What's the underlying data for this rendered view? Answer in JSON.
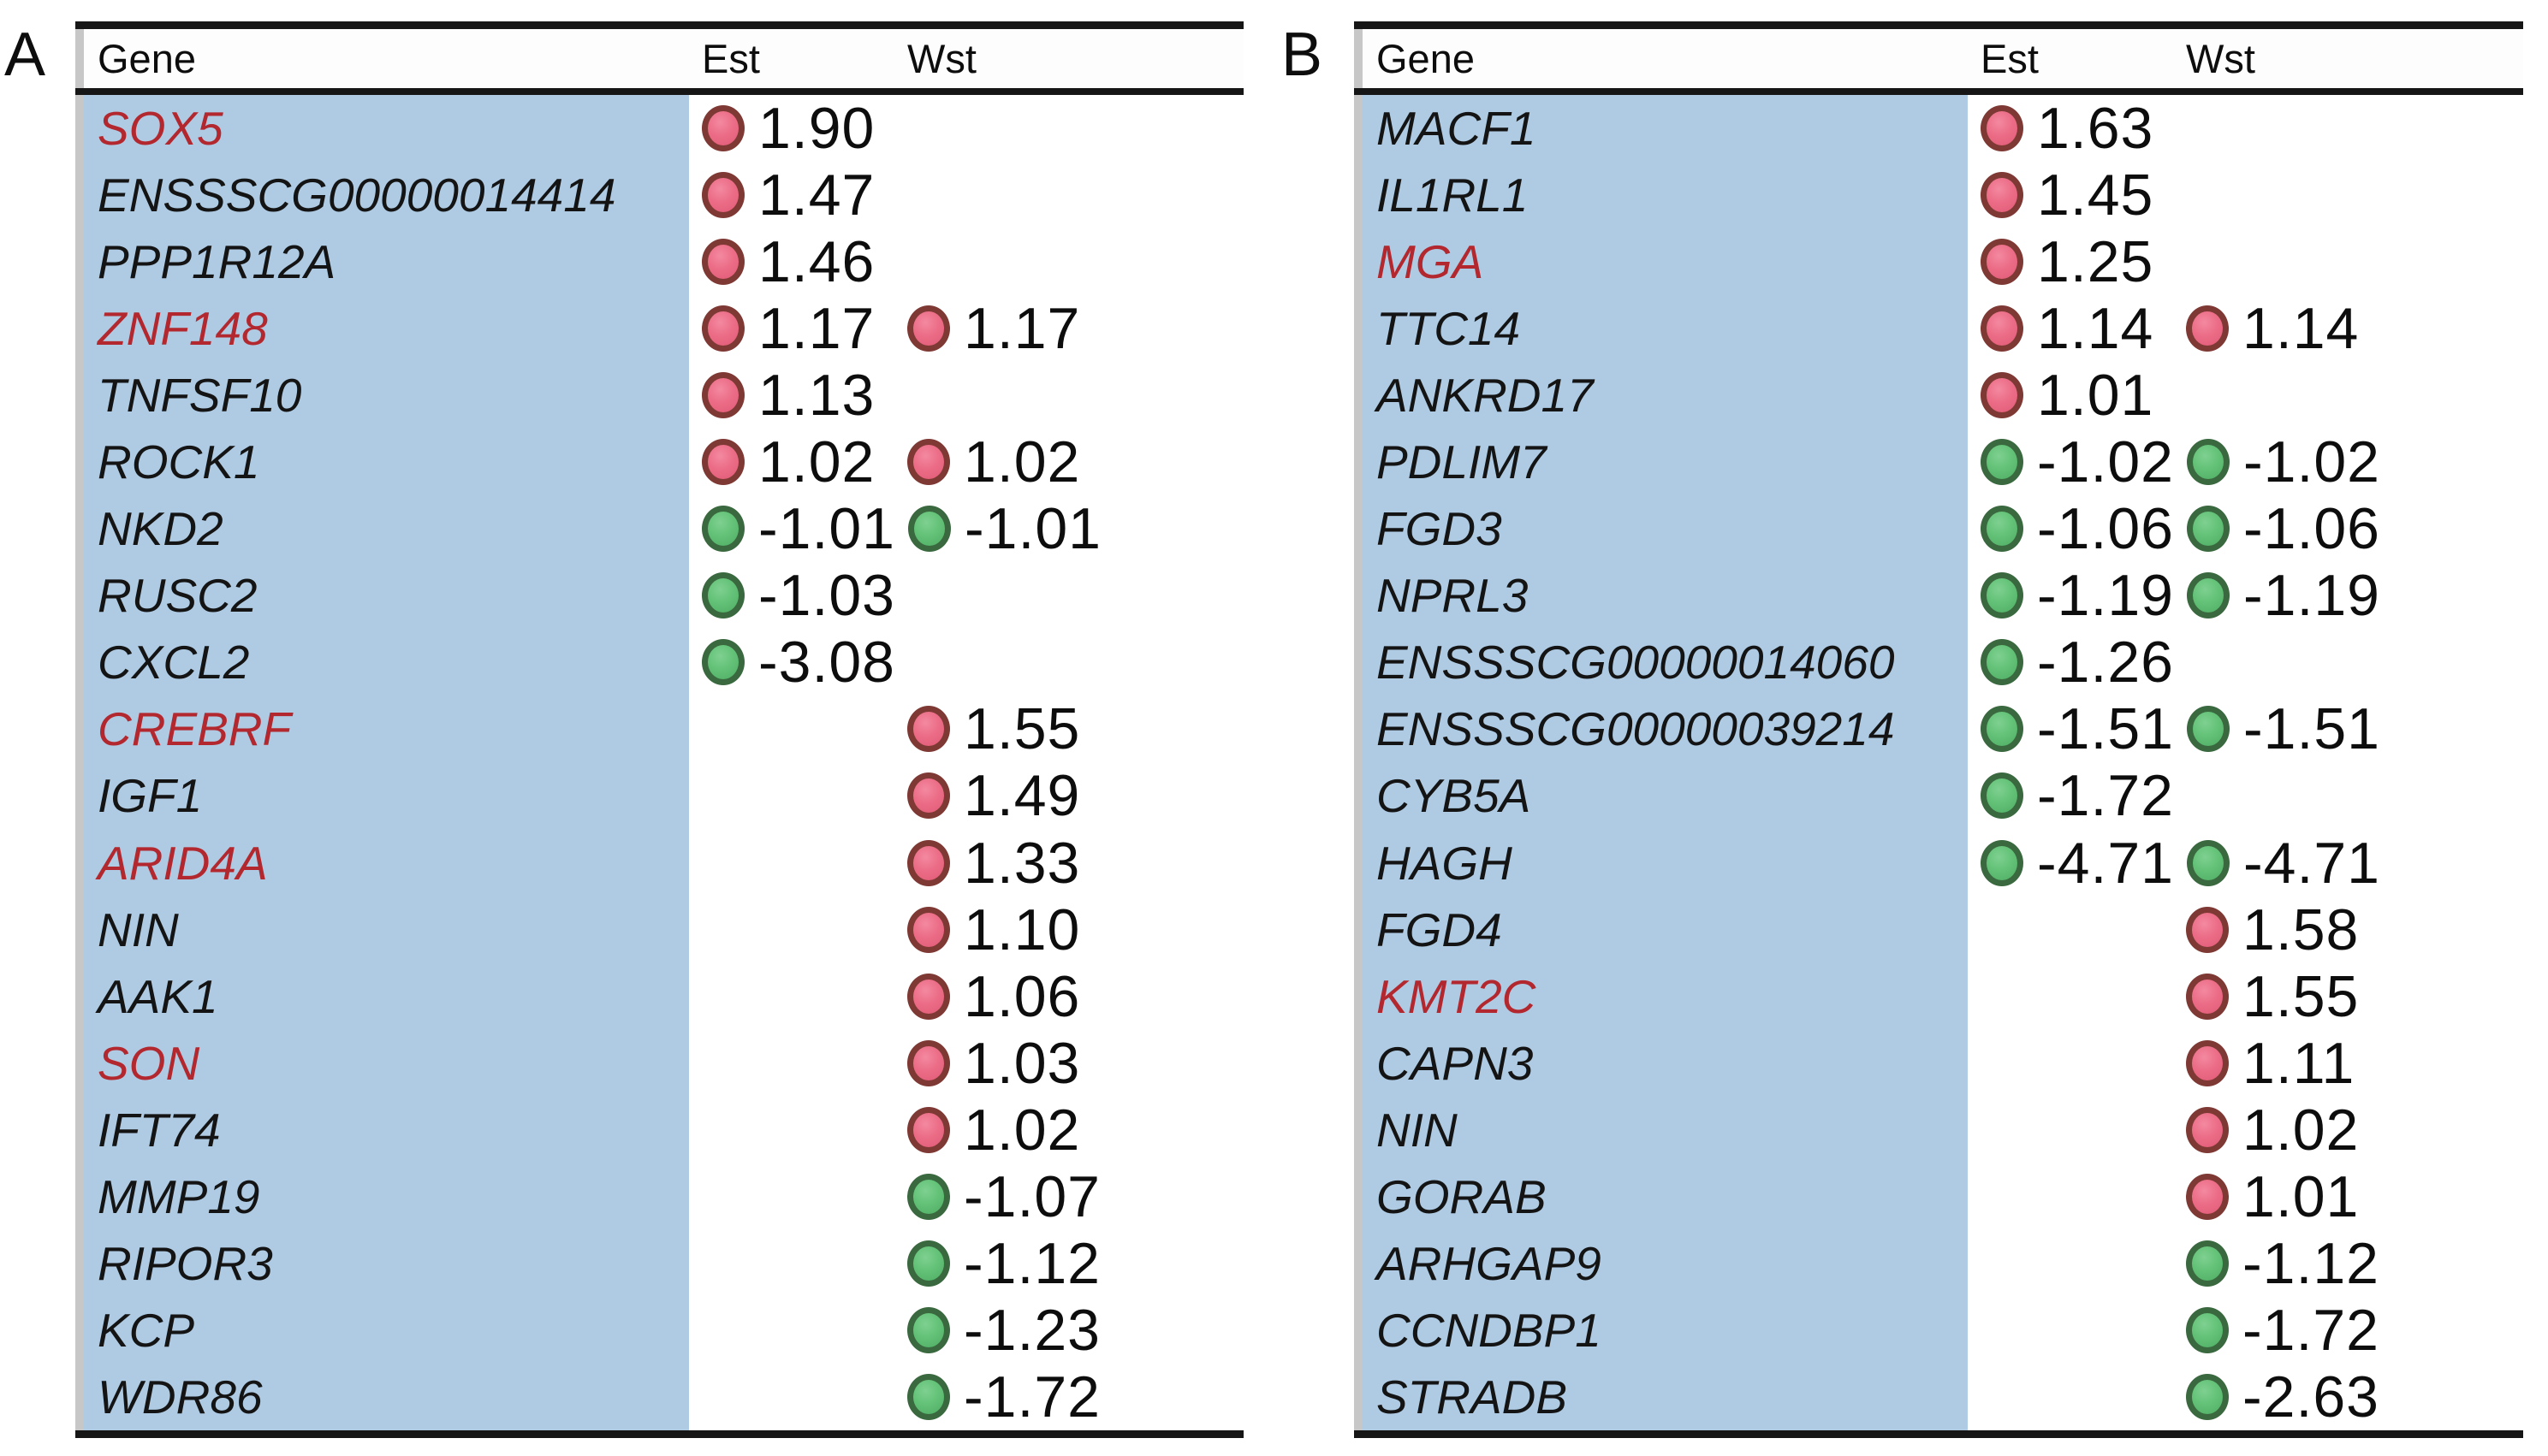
{
  "colors": {
    "gene_column_bg": "#aecbe3",
    "highlight_gene_red": "#b3282e",
    "upregulated_dot": "#e8647e",
    "upregulated_dot_border": "#7e3934",
    "downregulated_dot": "#63c277",
    "downregulated_dot_border": "#3a683f",
    "rule_black": "#161616",
    "left_border_gray": "#c7c7c7"
  },
  "panels": [
    {
      "label": "A",
      "columns": {
        "gene": "Gene",
        "est": "Est",
        "wst": "Wst"
      },
      "rows": [
        {
          "gene": "SOX5",
          "red": true,
          "est": "1.90",
          "wst": null
        },
        {
          "gene": "ENSSSCG00000014414",
          "red": false,
          "est": "1.47",
          "wst": null
        },
        {
          "gene": "PPP1R12A",
          "red": false,
          "est": "1.46",
          "wst": null
        },
        {
          "gene": "ZNF148",
          "red": true,
          "est": "1.17",
          "wst": "1.17"
        },
        {
          "gene": "TNFSF10",
          "red": false,
          "est": "1.13",
          "wst": null
        },
        {
          "gene": "ROCK1",
          "red": false,
          "est": "1.02",
          "wst": "1.02"
        },
        {
          "gene": "NKD2",
          "red": false,
          "est": "-1.01",
          "wst": "-1.01"
        },
        {
          "gene": "RUSC2",
          "red": false,
          "est": "-1.03",
          "wst": null
        },
        {
          "gene": "CXCL2",
          "red": false,
          "est": "-3.08",
          "wst": null
        },
        {
          "gene": "CREBRF",
          "red": true,
          "est": null,
          "wst": "1.55"
        },
        {
          "gene": "IGF1",
          "red": false,
          "est": null,
          "wst": "1.49"
        },
        {
          "gene": "ARID4A",
          "red": true,
          "est": null,
          "wst": "1.33"
        },
        {
          "gene": "NIN",
          "red": false,
          "est": null,
          "wst": "1.10"
        },
        {
          "gene": "AAK1",
          "red": false,
          "est": null,
          "wst": "1.06"
        },
        {
          "gene": "SON",
          "red": true,
          "est": null,
          "wst": "1.03"
        },
        {
          "gene": "IFT74",
          "red": false,
          "est": null,
          "wst": "1.02"
        },
        {
          "gene": "MMP19",
          "red": false,
          "est": null,
          "wst": "-1.07"
        },
        {
          "gene": "RIPOR3",
          "red": false,
          "est": null,
          "wst": "-1.12"
        },
        {
          "gene": "KCP",
          "red": false,
          "est": null,
          "wst": "-1.23"
        },
        {
          "gene": "WDR86",
          "red": false,
          "est": null,
          "wst": "-1.72"
        }
      ]
    },
    {
      "label": "B",
      "columns": {
        "gene": "Gene",
        "est": "Est",
        "wst": "Wst"
      },
      "rows": [
        {
          "gene": "MACF1",
          "red": false,
          "est": "1.63",
          "wst": null
        },
        {
          "gene": "IL1RL1",
          "red": false,
          "est": "1.45",
          "wst": null
        },
        {
          "gene": "MGA",
          "red": true,
          "est": "1.25",
          "wst": null
        },
        {
          "gene": "TTC14",
          "red": false,
          "est": "1.14",
          "wst": "1.14"
        },
        {
          "gene": "ANKRD17",
          "red": false,
          "est": "1.01",
          "wst": null
        },
        {
          "gene": "PDLIM7",
          "red": false,
          "est": "-1.02",
          "wst": "-1.02"
        },
        {
          "gene": "FGD3",
          "red": false,
          "est": "-1.06",
          "wst": "-1.06"
        },
        {
          "gene": "NPRL3",
          "red": false,
          "est": "-1.19",
          "wst": "-1.19"
        },
        {
          "gene": "ENSSSCG00000014060",
          "red": false,
          "est": "-1.26",
          "wst": null
        },
        {
          "gene": "ENSSSCG00000039214",
          "red": false,
          "est": "-1.51",
          "wst": "-1.51"
        },
        {
          "gene": "CYB5A",
          "red": false,
          "est": "-1.72",
          "wst": null
        },
        {
          "gene": "HAGH",
          "red": false,
          "est": "-4.71",
          "wst": "-4.71"
        },
        {
          "gene": "FGD4",
          "red": false,
          "est": null,
          "wst": "1.58"
        },
        {
          "gene": "KMT2C",
          "red": true,
          "est": null,
          "wst": "1.55"
        },
        {
          "gene": "CAPN3",
          "red": false,
          "est": null,
          "wst": "1.11"
        },
        {
          "gene": "NIN",
          "red": false,
          "est": null,
          "wst": "1.02"
        },
        {
          "gene": "GORAB",
          "red": false,
          "est": null,
          "wst": "1.01"
        },
        {
          "gene": "ARHGAP9",
          "red": false,
          "est": null,
          "wst": "-1.12"
        },
        {
          "gene": "CCNDBP1",
          "red": false,
          "est": null,
          "wst": "-1.72"
        },
        {
          "gene": "STRADB",
          "red": false,
          "est": null,
          "wst": "-2.63"
        }
      ]
    }
  ]
}
